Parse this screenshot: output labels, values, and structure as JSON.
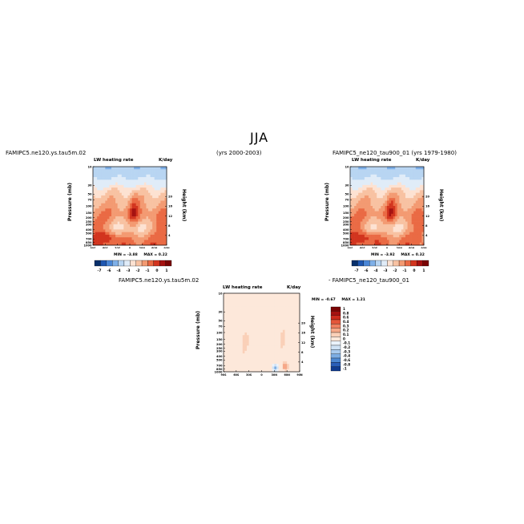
{
  "page": {
    "title": "JJA"
  },
  "panels": [
    {
      "case": "FAMIPC5.ne120.ys.tau5m.02",
      "years": "(yrs 2000-2003)",
      "variable": "LW heating rate",
      "units": "K/day",
      "ylabel": "Pressure (mb)",
      "y2label": "Height (km)",
      "stats": {
        "min_label": "MIN =",
        "min": "-3.88",
        "max_label": "MAX =",
        "max": "0.22"
      },
      "colorbar": {
        "orientation": "horizontal",
        "tick_labels": [
          "-7",
          "-6",
          "-4",
          "-3",
          "-2",
          "-1",
          "0",
          "1"
        ]
      }
    },
    {
      "case": "FAMIPC5_ne120_tau900_01",
      "years": "(yrs 1979-1980)",
      "variable": "LW heating rate",
      "units": "K/day",
      "ylabel": "Pressure (mb)",
      "y2label": "Height (km)",
      "stats": {
        "min_label": "MIN =",
        "min": "-3.92",
        "max_label": "MAX =",
        "max": "0.32"
      },
      "colorbar": {
        "orientation": "horizontal",
        "tick_labels": [
          "-7",
          "-6",
          "-4",
          "-3",
          "-2",
          "-1",
          "0",
          "1"
        ]
      }
    },
    {
      "case": "FAMIPC5.ne120.ys.tau5m.02",
      "case2": "- FAMIPC5_ne120_tau900_01",
      "variable": "LW heating rate",
      "units": "K/day",
      "ylabel": "Pressure (mb)",
      "y2label": "Height (km)",
      "stats": {
        "min_label": "MIN =",
        "min": "-0.67",
        "max_label": "MAX =",
        "max": "1.21"
      },
      "colorbar": {
        "orientation": "vertical",
        "tick_labels": [
          "1",
          "0.8",
          "0.6",
          "0.4",
          "0.3",
          "0.2",
          "0.1",
          "0",
          "-0.1",
          "-0.2",
          "-0.3",
          "-0.4",
          "-0.6",
          "-0.8",
          "-1"
        ]
      }
    }
  ],
  "chart_data": [
    {
      "type": "heatmap",
      "title": "LW heating rate",
      "units": "K/day",
      "ylabel": "Pressure (mb)",
      "y2label": "Height (km)",
      "y_ticks": [
        "10",
        "30",
        "50",
        "70",
        "100",
        "150",
        "200",
        "250",
        "300",
        "400",
        "500",
        "700",
        "850",
        "1000"
      ],
      "y2_ticks": [
        "20",
        "16",
        "12",
        "8",
        "4"
      ],
      "x_ticks": [
        "90S",
        "60S",
        "30S",
        "0",
        "30N",
        "60N",
        "90N"
      ],
      "ylim": [
        1000,
        10
      ],
      "xlim": [
        -90,
        90
      ],
      "levels": [
        -7,
        -6,
        -4,
        -3,
        -2,
        -1,
        0,
        1
      ],
      "min": -3.88,
      "max": 0.22
    },
    {
      "type": "heatmap",
      "title": "LW heating rate",
      "units": "K/day",
      "ylabel": "Pressure (mb)",
      "y2label": "Height (km)",
      "y_ticks": [
        "10",
        "30",
        "50",
        "70",
        "100",
        "150",
        "200",
        "250",
        "300",
        "400",
        "500",
        "700",
        "850",
        "1000"
      ],
      "y2_ticks": [
        "20",
        "16",
        "12",
        "8",
        "4"
      ],
      "x_ticks": [
        "90S",
        "60S",
        "30S",
        "0",
        "30N",
        "60N",
        "90N"
      ],
      "ylim": [
        1000,
        10
      ],
      "xlim": [
        -90,
        90
      ],
      "levels": [
        -7,
        -6,
        -4,
        -3,
        -2,
        -1,
        0,
        1
      ],
      "min": -3.92,
      "max": 0.32
    },
    {
      "type": "heatmap",
      "title": "LW heating rate",
      "units": "K/day",
      "ylabel": "Pressure (mb)",
      "y2label": "Height (km)",
      "y_ticks": [
        "10",
        "30",
        "50",
        "70",
        "100",
        "150",
        "200",
        "250",
        "300",
        "400",
        "500",
        "700",
        "850",
        "1000"
      ],
      "y2_ticks": [
        "20",
        "16",
        "12",
        "8",
        "4"
      ],
      "x_ticks": [
        "90S",
        "60S",
        "30S",
        "0",
        "30N",
        "60N",
        "90N"
      ],
      "ylim": [
        1000,
        10
      ],
      "xlim": [
        -90,
        90
      ],
      "levels": [
        -1,
        -0.8,
        -0.6,
        -0.4,
        -0.3,
        -0.2,
        -0.1,
        0,
        0.1,
        0.2,
        0.3,
        0.4,
        0.6,
        0.8,
        1
      ],
      "min": -0.67,
      "max": 1.21
    }
  ],
  "colors": {
    "abs_scale": [
      "#08306b",
      "#1f57b0",
      "#4a86d6",
      "#7fb0e8",
      "#b8d5f2",
      "#e0ecf8",
      "#fde2d2",
      "#f8c2a2",
      "#f39a72",
      "#ea6a44",
      "#d2341e",
      "#a51110",
      "#7a0404"
    ],
    "diff_scale": [
      "#7a0404",
      "#a51110",
      "#cc2a1c",
      "#e4563a",
      "#f08060",
      "#f6a888",
      "#fad0b8",
      "#fde8da",
      "#eaf2fb",
      "#cfe2f5",
      "#a9cbee",
      "#7cade3",
      "#4d88d2",
      "#2a5fb8",
      "#103c8f"
    ]
  }
}
